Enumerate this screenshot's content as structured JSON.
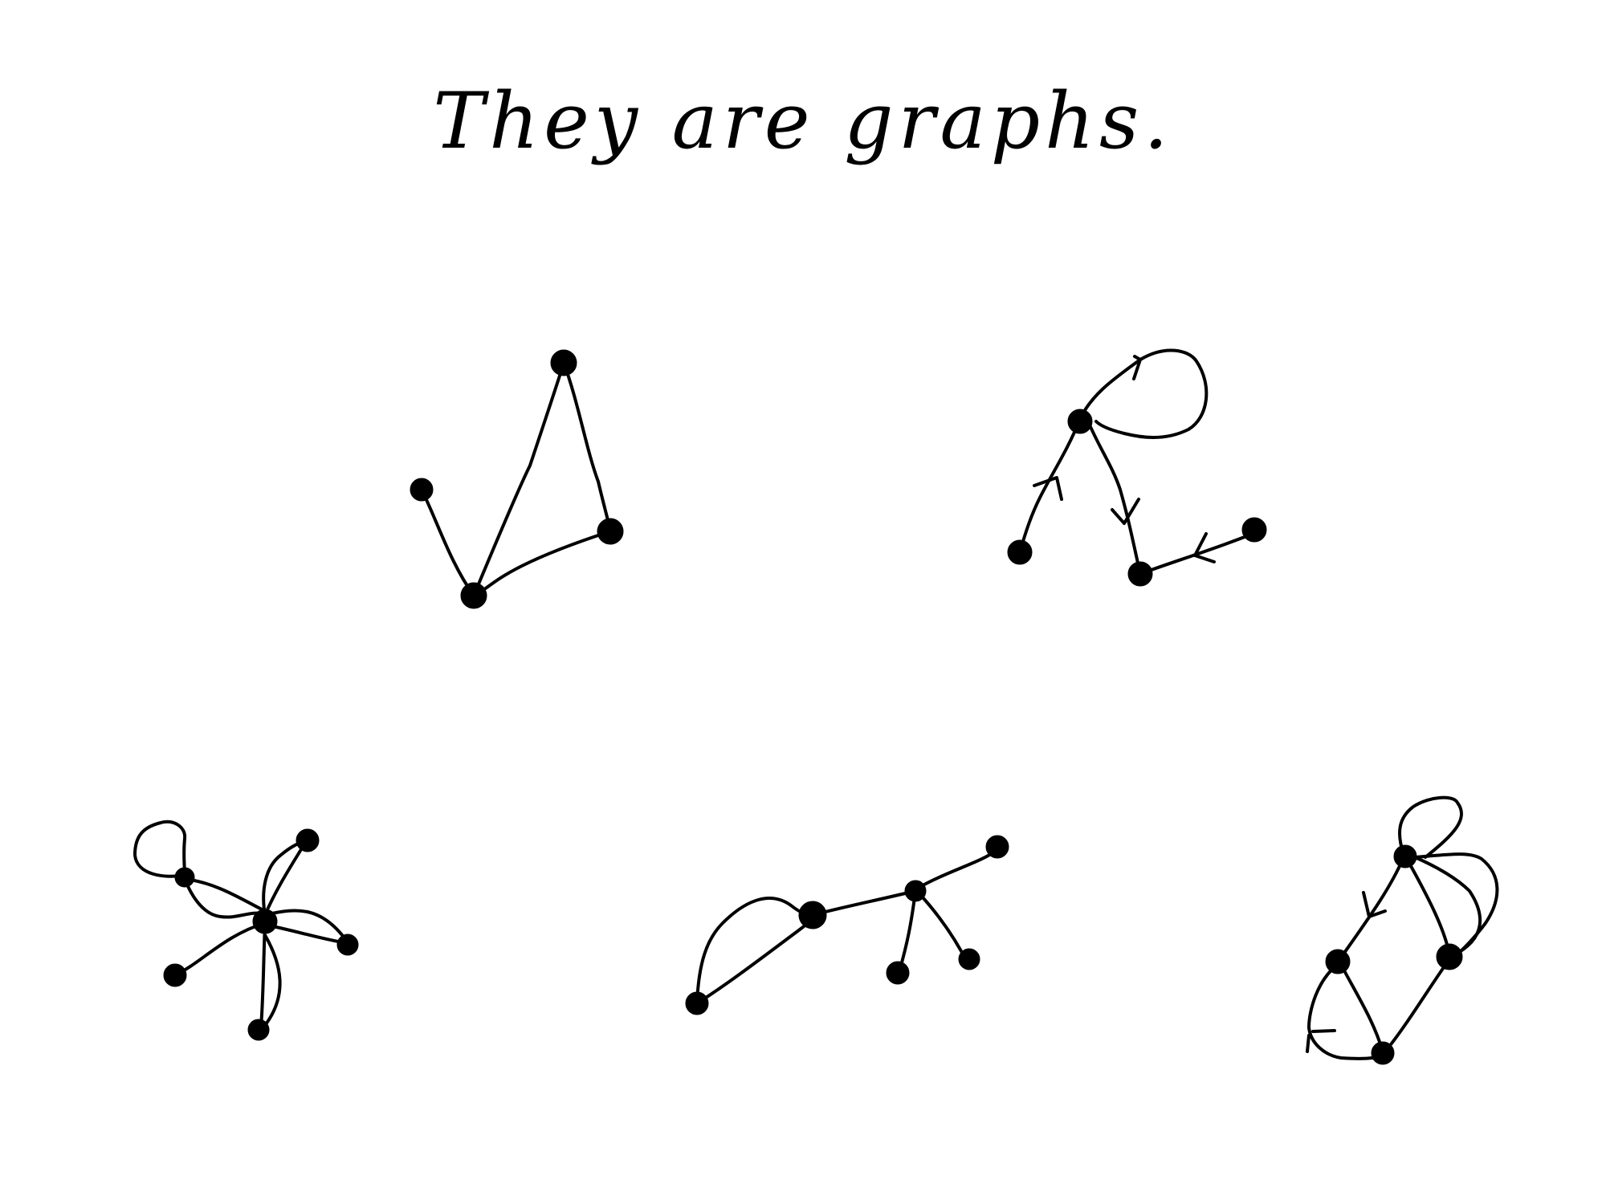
{
  "title": "They are graphs.",
  "colors": {
    "ink": "#000000",
    "paper": "#ffffff"
  }
}
